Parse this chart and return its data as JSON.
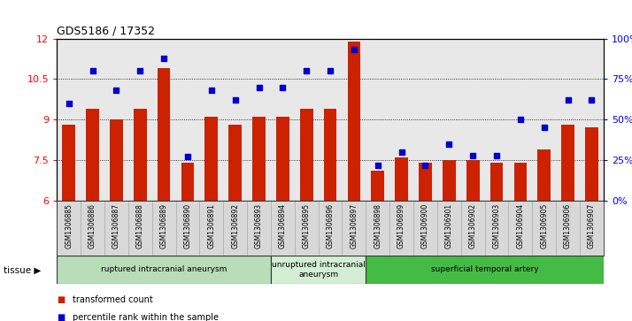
{
  "title": "GDS5186 / 17352",
  "samples": [
    "GSM1306885",
    "GSM1306886",
    "GSM1306887",
    "GSM1306888",
    "GSM1306889",
    "GSM1306890",
    "GSM1306891",
    "GSM1306892",
    "GSM1306893",
    "GSM1306894",
    "GSM1306895",
    "GSM1306896",
    "GSM1306897",
    "GSM1306898",
    "GSM1306899",
    "GSM1306900",
    "GSM1306901",
    "GSM1306902",
    "GSM1306903",
    "GSM1306904",
    "GSM1306905",
    "GSM1306906",
    "GSM1306907"
  ],
  "bar_values": [
    8.8,
    9.4,
    9.0,
    9.4,
    10.9,
    7.4,
    9.1,
    8.8,
    9.1,
    9.1,
    9.4,
    9.4,
    11.9,
    7.1,
    7.6,
    7.4,
    7.5,
    7.5,
    7.4,
    7.4,
    7.9,
    8.8,
    8.7
  ],
  "dot_percentiles": [
    60,
    80,
    68,
    80,
    88,
    27,
    68,
    62,
    70,
    70,
    80,
    80,
    93,
    22,
    30,
    22,
    35,
    28,
    28,
    50,
    45,
    62,
    62
  ],
  "ylim_left": [
    6,
    12
  ],
  "ylim_right": [
    0,
    100
  ],
  "yticks_left": [
    6,
    7.5,
    9,
    10.5,
    12
  ],
  "ytick_labels_left": [
    "6",
    "7.5",
    "9",
    "10.5",
    "12"
  ],
  "yticks_right": [
    0,
    25,
    50,
    75,
    100
  ],
  "ytick_labels_right": [
    "0%",
    "25%",
    "50%",
    "75%",
    "100%"
  ],
  "bar_color": "#cc2200",
  "dot_color": "#0000cc",
  "plot_bg": "#e8e8e8",
  "groups": [
    {
      "label": "ruptured intracranial aneurysm",
      "start": 0,
      "end": 9,
      "color": "#b8ddb8"
    },
    {
      "label": "unruptured intracranial\naneurysm",
      "start": 9,
      "end": 13,
      "color": "#d4eed4"
    },
    {
      "label": "superficial temporal artery",
      "start": 13,
      "end": 23,
      "color": "#44bb44"
    }
  ],
  "legend_items": [
    {
      "label": "transformed count",
      "color": "#cc2200"
    },
    {
      "label": "percentile rank within the sample",
      "color": "#0000cc"
    }
  ]
}
